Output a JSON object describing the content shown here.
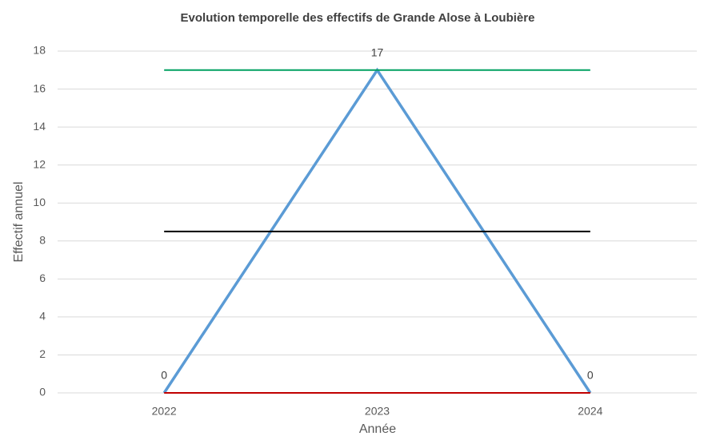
{
  "chart_data": {
    "type": "line",
    "title": "Evolution temporelle des effectifs de Grande Alose à Loubière",
    "xlabel": "Année",
    "ylabel": "Effectif annuel",
    "categories": [
      "2022",
      "2023",
      "2024"
    ],
    "series": [
      {
        "color": "#5b9bd5",
        "values": [
          0,
          17,
          0
        ],
        "data_labels": true,
        "width": 3.5
      },
      {
        "color": "#00a060",
        "values": [
          17,
          17,
          17
        ],
        "data_labels": false,
        "width": 2
      },
      {
        "color": "#000000",
        "values": [
          8.5,
          8.5,
          8.5
        ],
        "data_labels": false,
        "width": 2
      },
      {
        "color": "#c00000",
        "values": [
          0,
          0,
          0
        ],
        "data_labels": false,
        "width": 2
      }
    ],
    "ylim": [
      0,
      18
    ],
    "yticks": [
      0,
      2,
      4,
      6,
      8,
      10,
      12,
      14,
      16,
      18
    ],
    "grid": true
  }
}
